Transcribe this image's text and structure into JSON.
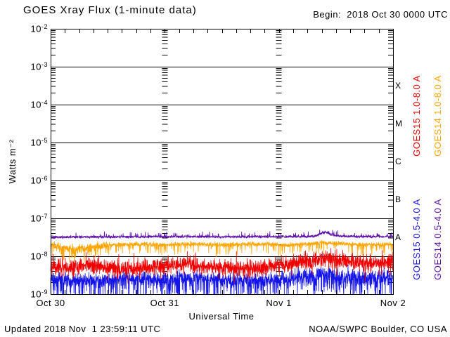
{
  "header": {
    "title": "GOES Xray Flux (1-minute data)",
    "begin": "Begin:  2018 Oct 30 0000 UTC"
  },
  "axes": {
    "x_title": "Universal Time",
    "y_title": "Watts m⁻²"
  },
  "footer": {
    "updated": "Updated 2018 Nov  1 23:59:11 UTC",
    "credit": "NOAA/SWPC Boulder, CO USA"
  },
  "chart_data": {
    "type": "line",
    "title": "GOES Xray Flux (1-minute data)",
    "xlabel": "Universal Time",
    "ylabel": "Watts m-2",
    "y_scale": "log",
    "y_range_watts": [
      1e-09,
      0.01
    ],
    "x_hours_range": [
      0,
      72
    ],
    "x_minor_tick_hours": 3,
    "grid": {
      "horizontal_decade_lines": true,
      "day_tick_column_hours": [
        24,
        48
      ]
    },
    "x_ticks": [
      {
        "hour": 0,
        "label": "Oct 30"
      },
      {
        "hour": 24,
        "label": "Oct 31"
      },
      {
        "hour": 48,
        "label": "Nov 1"
      },
      {
        "hour": 72,
        "label": "Nov 2"
      }
    ],
    "y_tick_exponents": [
      -2,
      -3,
      -4,
      -5,
      -6,
      -7,
      -8,
      -9
    ],
    "flare_classes": [
      {
        "letter": "X",
        "flux": 0.000316
      },
      {
        "letter": "M",
        "flux": 3.16e-05
      },
      {
        "letter": "C",
        "flux": 3.16e-06
      },
      {
        "letter": "B",
        "flux": 3.16e-07
      },
      {
        "letter": "A",
        "flux": 3.16e-08
      }
    ],
    "draw_order": [
      "goes15-short",
      "goes15-long",
      "goes14-long",
      "goes14-short"
    ],
    "series": [
      {
        "id": "goes15-long",
        "label": "GOES15 1.0-8.0 A",
        "color": "#ee0000",
        "seed": 11,
        "noise_decades": 0.2,
        "spike": {
          "prob": 0.08,
          "max_decades": 0.3,
          "direction": "both"
        },
        "noise_windows": [],
        "profile": [
          [
            0,
            5.5e-09
          ],
          [
            4,
            5e-09
          ],
          [
            8,
            6e-09
          ],
          [
            12,
            5e-09
          ],
          [
            16,
            4.5e-09
          ],
          [
            20,
            5e-09
          ],
          [
            24,
            5.5e-09
          ],
          [
            28,
            6e-09
          ],
          [
            32,
            5.5e-09
          ],
          [
            36,
            5e-09
          ],
          [
            40,
            4.5e-09
          ],
          [
            44,
            5e-09
          ],
          [
            48,
            5.5e-09
          ],
          [
            52,
            7e-09
          ],
          [
            56,
            8e-09
          ],
          [
            58,
            8.5e-09
          ],
          [
            60,
            7.5e-09
          ],
          [
            64,
            7e-09
          ],
          [
            68,
            6.5e-09
          ],
          [
            72,
            7e-09
          ]
        ]
      },
      {
        "id": "goes14-long",
        "label": "GOES14 1.0-8.0 A",
        "color": "#ffa500",
        "seed": 22,
        "noise_decades": 0.06,
        "spike": {
          "prob": 0.08,
          "max_decades": 0.28,
          "direction": "down"
        },
        "noise_windows": [
          {
            "from": 0,
            "to": 12,
            "factor": 1.9
          }
        ],
        "profile": [
          [
            0,
            2.1e-08
          ],
          [
            2,
            1.7e-08
          ],
          [
            5,
            1.5e-08
          ],
          [
            8,
            1.7e-08
          ],
          [
            12,
            2e-08
          ],
          [
            18,
            2.1e-08
          ],
          [
            24,
            2e-08
          ],
          [
            30,
            2.1e-08
          ],
          [
            36,
            2e-08
          ],
          [
            42,
            2.1e-08
          ],
          [
            48,
            2e-08
          ],
          [
            54,
            2.1e-08
          ],
          [
            57,
            2.3e-08
          ],
          [
            59,
            2.2e-08
          ],
          [
            62,
            2.1e-08
          ],
          [
            66,
            2e-08
          ],
          [
            72,
            2.1e-08
          ]
        ]
      },
      {
        "id": "goes15-short",
        "label": "GOES15 0.5-4.0 A",
        "color": "#1414e8",
        "seed": 33,
        "noise_decades": 0.18,
        "spike": {
          "prob": 0.16,
          "max_decades": 0.55,
          "direction": "down"
        },
        "noise_windows": [
          {
            "from": 48,
            "to": 72,
            "factor": 1.3
          }
        ],
        "profile": [
          [
            0,
            2.6e-09
          ],
          [
            6,
            2.3e-09
          ],
          [
            12,
            2.5e-09
          ],
          [
            18,
            2.7e-09
          ],
          [
            24,
            2.5e-09
          ],
          [
            30,
            2.7e-09
          ],
          [
            36,
            2.5e-09
          ],
          [
            42,
            2.3e-09
          ],
          [
            48,
            2.5e-09
          ],
          [
            52,
            2.8e-09
          ],
          [
            56,
            3.2e-09
          ],
          [
            58,
            3.4e-09
          ],
          [
            60,
            3e-09
          ],
          [
            64,
            2.8e-09
          ],
          [
            68,
            2.7e-09
          ],
          [
            72,
            2.8e-09
          ]
        ]
      },
      {
        "id": "goes14-short",
        "label": "GOES14 0.5-4.0 A",
        "color": "#5c10a8",
        "seed": 44,
        "noise_decades": 0.035,
        "spike": {
          "prob": 0.05,
          "max_decades": 0.12,
          "direction": "up"
        },
        "noise_windows": [],
        "profile": [
          [
            0,
            3.2e-08
          ],
          [
            12,
            3.25e-08
          ],
          [
            24,
            3.3e-08
          ],
          [
            36,
            3.25e-08
          ],
          [
            48,
            3.3e-08
          ],
          [
            54,
            3.3e-08
          ],
          [
            56,
            3.5e-08
          ],
          [
            57,
            4e-08
          ],
          [
            58,
            4.3e-08
          ],
          [
            59,
            3.8e-08
          ],
          [
            60,
            3.5e-08
          ],
          [
            62,
            3.35e-08
          ],
          [
            66,
            3.3e-08
          ],
          [
            72,
            3.3e-08
          ]
        ]
      }
    ]
  }
}
